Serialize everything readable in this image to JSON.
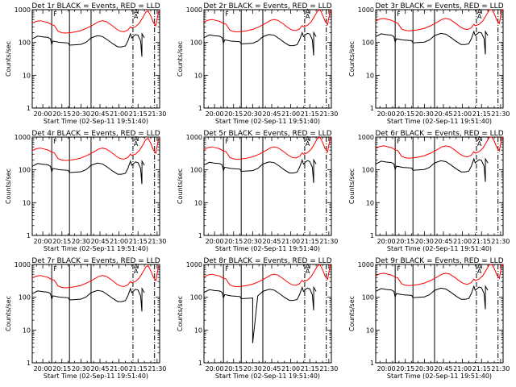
{
  "chart_data": [
    {
      "title": "Det 1r BLACK = Events, RED = LLD",
      "det": 1,
      "type": "line",
      "ylabel": "Counts/sec",
      "xlabel": "Start Time (02-Sep-11 19:51:40)",
      "yscale": "log",
      "ylim": [
        1,
        1000
      ],
      "x_start": "19:51:40",
      "x_end": "21:32",
      "ytick_labels": [
        "1",
        "10",
        "100",
        "1000"
      ],
      "xtick_labels": [
        "20:00",
        "20:15",
        "20:30",
        "20:45",
        "21:00",
        "21:15",
        "21:30"
      ],
      "annotations": [
        "F",
        "A",
        "A"
      ],
      "solid_markers": [
        "20:07",
        "20:21",
        "20:38"
      ],
      "dashdot_markers": [
        "21:11",
        "21:28"
      ],
      "series": [
        {
          "name": "Events",
          "color": "#000000",
          "values": []
        },
        {
          "name": "LLD",
          "color": "#ff0000",
          "values": []
        }
      ]
    },
    {
      "title": "Det 2r BLACK = Events, RED = LLD",
      "det": 2,
      "type": "line",
      "ylabel": "Counts/sec",
      "xlabel": "Start Time (02-Sep-11 19:51:40)",
      "yscale": "log",
      "ylim": [
        1,
        1000
      ],
      "x_start": "19:51:40",
      "x_end": "21:32",
      "ytick_labels": [
        "1",
        "10",
        "100",
        "1000"
      ],
      "xtick_labels": [
        "20:00",
        "20:15",
        "20:30",
        "20:45",
        "21:00",
        "21:15",
        "21:30"
      ],
      "annotations": [
        "F",
        "A",
        "A"
      ],
      "solid_markers": [
        "20:07",
        "20:21",
        "20:38"
      ],
      "dashdot_markers": [
        "21:11",
        "21:28"
      ],
      "series": [
        {
          "name": "Events",
          "color": "#000000",
          "values": []
        },
        {
          "name": "LLD",
          "color": "#ff0000",
          "values": []
        }
      ]
    },
    {
      "title": "Det 3r BLACK = Events, RED = LLD",
      "det": 3,
      "type": "line",
      "ylabel": "Counts/sec",
      "xlabel": "Start Time (02-Sep-11 19:51:40)",
      "yscale": "log",
      "ylim": [
        1,
        1000
      ],
      "x_start": "19:51:40",
      "x_end": "21:32",
      "ytick_labels": [
        "1",
        "10",
        "100",
        "1000"
      ],
      "xtick_labels": [
        "20:00",
        "20:15",
        "20:30",
        "20:45",
        "21:00",
        "21:15",
        "21:30"
      ],
      "annotations": [
        "F",
        "A",
        "A"
      ],
      "solid_markers": [
        "20:07",
        "20:21",
        "20:38"
      ],
      "dashdot_markers": [
        "21:11",
        "21:28"
      ],
      "series": [
        {
          "name": "Events",
          "color": "#000000",
          "values": []
        },
        {
          "name": "LLD",
          "color": "#ff0000",
          "values": []
        }
      ]
    },
    {
      "title": "Det 4r BLACK = Events, RED = LLD",
      "det": 4,
      "type": "line",
      "ylabel": "Counts/sec",
      "xlabel": "Start Time (02-Sep-11 19:51:40)",
      "yscale": "log",
      "ylim": [
        1,
        1000
      ],
      "x_start": "19:51:40",
      "x_end": "21:32",
      "ytick_labels": [
        "1",
        "10",
        "100",
        "1000"
      ],
      "xtick_labels": [
        "20:00",
        "20:15",
        "20:30",
        "20:45",
        "21:00",
        "21:15",
        "21:30"
      ],
      "annotations": [
        "F",
        "A",
        "A"
      ],
      "solid_markers": [
        "20:07",
        "20:21",
        "20:38"
      ],
      "dashdot_markers": [
        "21:11",
        "21:28"
      ],
      "series": [
        {
          "name": "Events",
          "color": "#000000",
          "values": []
        },
        {
          "name": "LLD",
          "color": "#ff0000",
          "values": []
        }
      ]
    },
    {
      "title": "Det 5r BLACK = Events, RED = LLD",
      "det": 5,
      "type": "line",
      "ylabel": "Counts/sec",
      "xlabel": "Start Time (02-Sep-11 19:51:40)",
      "yscale": "log",
      "ylim": [
        1,
        1000
      ],
      "x_start": "19:51:40",
      "x_end": "21:32",
      "ytick_labels": [
        "1",
        "10",
        "100",
        "1000"
      ],
      "xtick_labels": [
        "20:00",
        "20:15",
        "20:30",
        "20:45",
        "21:00",
        "21:15",
        "21:30"
      ],
      "annotations": [
        "F",
        "A",
        "A"
      ],
      "solid_markers": [
        "20:07",
        "20:21",
        "20:38"
      ],
      "dashdot_markers": [
        "21:11",
        "21:28"
      ],
      "series": [
        {
          "name": "Events",
          "color": "#000000",
          "values": []
        },
        {
          "name": "LLD",
          "color": "#ff0000",
          "values": []
        }
      ]
    },
    {
      "title": "Det 6r BLACK = Events, RED = LLD",
      "det": 6,
      "type": "line",
      "ylabel": "Counts/sec",
      "xlabel": "Start Time (02-Sep-11 19:51:40)",
      "yscale": "log",
      "ylim": [
        1,
        1000
      ],
      "x_start": "19:51:40",
      "x_end": "21:32",
      "ytick_labels": [
        "1",
        "10",
        "100",
        "1000"
      ],
      "xtick_labels": [
        "20:00",
        "20:15",
        "20:30",
        "20:45",
        "21:00",
        "21:15",
        "21:30"
      ],
      "annotations": [
        "F",
        "A",
        "A"
      ],
      "solid_markers": [
        "20:07",
        "20:21",
        "20:38"
      ],
      "dashdot_markers": [
        "21:11",
        "21:28"
      ],
      "series": [
        {
          "name": "Events",
          "color": "#000000",
          "values": []
        },
        {
          "name": "LLD",
          "color": "#ff0000",
          "values": []
        }
      ]
    },
    {
      "title": "Det 7r BLACK = Events, RED = LLD",
      "det": 7,
      "type": "line",
      "ylabel": "Counts/sec",
      "xlabel": "Start Time (02-Sep-11 19:51:40)",
      "yscale": "log",
      "ylim": [
        1,
        1000
      ],
      "x_start": "19:51:40",
      "x_end": "21:32",
      "ytick_labels": [
        "1",
        "10",
        "100",
        "1000"
      ],
      "xtick_labels": [
        "20:00",
        "20:15",
        "20:30",
        "20:45",
        "21:00",
        "21:15",
        "21:30"
      ],
      "annotations": [
        "F",
        "A",
        "A"
      ],
      "solid_markers": [
        "20:07",
        "20:21",
        "20:38"
      ],
      "dashdot_markers": [
        "21:11",
        "21:28"
      ],
      "series": [
        {
          "name": "Events",
          "color": "#000000",
          "values": []
        },
        {
          "name": "LLD",
          "color": "#ff0000",
          "values": []
        }
      ]
    },
    {
      "title": "Det 8r BLACK = Events, RED = LLD",
      "det": 8,
      "type": "line",
      "ylabel": "Counts/sec",
      "xlabel": "Start Time (02-Sep-11 19:51:40)",
      "yscale": "log",
      "ylim": [
        1,
        1000
      ],
      "x_start": "19:51:40",
      "x_end": "21:32",
      "ytick_labels": [
        "1",
        "10",
        "100",
        "1000"
      ],
      "xtick_labels": [
        "20:00",
        "20:15",
        "20:30",
        "20:45",
        "21:00",
        "21:15",
        "21:30"
      ],
      "annotations": [
        "F",
        "A",
        "A"
      ],
      "solid_markers": [
        "20:07",
        "20:21",
        "20:38"
      ],
      "dashdot_markers": [
        "21:11",
        "21:28"
      ],
      "series": [
        {
          "name": "Events",
          "color": "#000000",
          "values": []
        },
        {
          "name": "LLD",
          "color": "#ff0000",
          "values": []
        }
      ]
    },
    {
      "title": "Det 9r BLACK = Events, RED = LLD",
      "det": 9,
      "type": "line",
      "ylabel": "Counts/sec",
      "xlabel": "Start Time (02-Sep-11 19:51:40)",
      "yscale": "log",
      "ylim": [
        1,
        1000
      ],
      "x_start": "19:51:40",
      "x_end": "21:32",
      "ytick_labels": [
        "1",
        "10",
        "100",
        "1000"
      ],
      "xtick_labels": [
        "20:00",
        "20:15",
        "20:30",
        "20:45",
        "21:00",
        "21:15",
        "21:30"
      ],
      "annotations": [
        "F",
        "A",
        "A"
      ],
      "solid_markers": [
        "20:07",
        "20:21",
        "20:38"
      ],
      "dashdot_markers": [
        "21:11",
        "21:28"
      ],
      "series": [
        {
          "name": "Events",
          "color": "#000000",
          "values": []
        },
        {
          "name": "LLD",
          "color": "#ff0000",
          "values": []
        }
      ]
    }
  ],
  "anchors": {
    "lld": [
      [
        "19:51:40",
        420
      ],
      [
        "19:55",
        480
      ],
      [
        "19:58",
        500
      ],
      [
        "20:01",
        470
      ],
      [
        "20:04",
        440
      ],
      [
        "20:07",
        380
      ],
      [
        "20:09",
        360
      ],
      [
        "20:12",
        240
      ],
      [
        "20:15",
        215
      ],
      [
        "20:18",
        210
      ],
      [
        "20:21",
        215
      ],
      [
        "20:25",
        225
      ],
      [
        "20:30",
        250
      ],
      [
        "20:35",
        300
      ],
      [
        "20:40",
        380
      ],
      [
        "20:44",
        470
      ],
      [
        "20:47",
        500
      ],
      [
        "20:50",
        470
      ],
      [
        "20:54",
        370
      ],
      [
        "20:58",
        280
      ],
      [
        "21:01",
        240
      ],
      [
        "21:04",
        230
      ],
      [
        "21:07",
        260
      ],
      [
        "21:09",
        330
      ],
      [
        "21:10",
        300
      ],
      [
        "21:13",
        330
      ],
      [
        "21:16",
        420
      ],
      [
        "21:19",
        650
      ],
      [
        "21:21",
        900
      ],
      [
        "21:23",
        1000
      ],
      [
        "21:25",
        700
      ],
      [
        "21:27",
        450
      ],
      [
        "21:29",
        350
      ],
      [
        "21:31",
        900
      ],
      [
        "21:32",
        1000
      ]
    ],
    "events": [
      [
        "19:51:40",
        140
      ],
      [
        "19:56",
        170
      ],
      [
        "20:00",
        160
      ],
      [
        "20:04",
        155
      ],
      [
        "20:06",
        140
      ],
      [
        "20:07",
        95
      ],
      [
        "20:08",
        120
      ],
      [
        "20:13",
        110
      ],
      [
        "20:20",
        105
      ],
      [
        "20:21",
        90
      ],
      [
        "20:25",
        92
      ],
      [
        "20:30",
        95
      ],
      [
        "20:34",
        110
      ],
      [
        "20:38",
        150
      ],
      [
        "20:43",
        175
      ],
      [
        "20:47",
        165
      ],
      [
        "20:51",
        130
      ],
      [
        "20:55",
        100
      ],
      [
        "20:59",
        80
      ],
      [
        "21:02",
        80
      ],
      [
        "21:05",
        85
      ],
      [
        "21:07",
        120
      ],
      [
        "21:09",
        200
      ],
      [
        "21:10",
        150
      ],
      [
        "21:13",
        190
      ],
      [
        "21:15",
        180
      ],
      [
        "21:17",
        120
      ],
      [
        "21:18",
        40
      ],
      [
        "21:18.1",
        200
      ],
      [
        "21:20",
        150
      ]
    ]
  }
}
